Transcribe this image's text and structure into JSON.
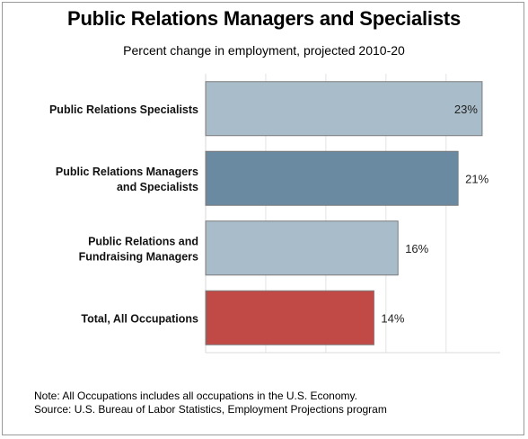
{
  "chart_data": {
    "type": "bar",
    "orientation": "horizontal",
    "title": "Public Relations Managers and Specialists",
    "subtitle": "Percent change in employment, projected 2010-20",
    "categories": [
      "Public Relations Specialists",
      "Public Relations Managers and Specialists",
      "Public Relations and Fundraising Managers",
      "Total, All Occupations"
    ],
    "category_lines": [
      [
        "Public Relations Specialists"
      ],
      [
        "Public Relations Managers",
        "and Specialists"
      ],
      [
        "Public Relations and",
        "Fundraising Managers"
      ],
      [
        "Total, All Occupations"
      ]
    ],
    "values": [
      23,
      21,
      16,
      14
    ],
    "value_labels": [
      "23%",
      "21%",
      "16%",
      "14%"
    ],
    "colors": [
      "#a9bcc9",
      "#6a8aa2",
      "#a9bcc9",
      "#c24a46"
    ],
    "xlim": [
      0,
      24.5
    ],
    "grid": true,
    "xlabel": "",
    "ylabel": ""
  },
  "notes": {
    "line1": "Note: All Occupations includes all occupations in the U.S. Economy.",
    "line2": "Source: U.S. Bureau of Labor Statistics, Employment Projections program"
  }
}
